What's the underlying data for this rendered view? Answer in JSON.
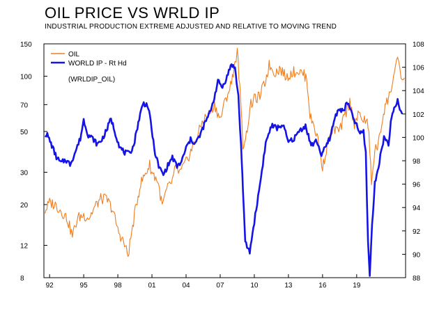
{
  "chart_data": {
    "type": "line",
    "title": "OIL PRICE VS WRLD IP",
    "subtitle": "INDUSTRIAL PRODUCTION EXTREME ADJUSTED AND RELATIVE TO MOVING TREND",
    "annotation": "(WRLDIP_OIL)",
    "colors": {
      "oil": "#f07d1e",
      "world_ip": "#1414e6",
      "frame": "#000000"
    },
    "xlim": [
      1991.5,
      2023.3
    ],
    "x_ticks": [
      1992,
      1995,
      1998,
      2001,
      2004,
      2007,
      2010,
      2013,
      2016,
      2019
    ],
    "x_tick_labels": [
      "92",
      "95",
      "98",
      "01",
      "04",
      "07",
      "10",
      "13",
      "16",
      "19"
    ],
    "y_left": {
      "scale": "log",
      "lim": [
        8,
        150
      ],
      "ticks": [
        150,
        100,
        70,
        50,
        30,
        20,
        12,
        8
      ],
      "tick_labels": [
        "150",
        "100",
        "70",
        "50",
        "30",
        "20",
        "12",
        "8"
      ]
    },
    "y_right": {
      "scale": "linear",
      "lim": [
        88,
        108
      ],
      "ticks": [
        108,
        106,
        104,
        102,
        100,
        98,
        96,
        94,
        92,
        90,
        88
      ],
      "tick_labels": [
        "108",
        "106",
        "104",
        "102",
        "100",
        "98",
        "96",
        "94",
        "92",
        "90",
        "88"
      ]
    },
    "legend": {
      "position": "top-left",
      "entries": [
        "OIL",
        "WORLD IP - Rt Hd"
      ]
    },
    "series": [
      {
        "name": "OIL",
        "axis": "left",
        "x": [
          1991.6,
          1992.0,
          1992.5,
          1993.0,
          1993.5,
          1994.0,
          1994.5,
          1995.0,
          1995.5,
          1996.0,
          1996.5,
          1997.0,
          1997.5,
          1998.0,
          1998.5,
          1998.9,
          1999.3,
          1999.7,
          2000.0,
          2000.5,
          2000.8,
          2001.0,
          2001.5,
          2001.9,
          2002.3,
          2002.8,
          2003.0,
          2003.5,
          2004.0,
          2004.5,
          2005.0,
          2005.5,
          2006.0,
          2006.5,
          2007.0,
          2007.5,
          2008.0,
          2008.3,
          2008.5,
          2008.8,
          2009.0,
          2009.3,
          2009.7,
          2010.0,
          2010.5,
          2011.0,
          2011.3,
          2011.8,
          2012.3,
          2012.8,
          2013.3,
          2013.8,
          2014.3,
          2014.6,
          2014.9,
          2015.2,
          2015.6,
          2016.0,
          2016.5,
          2017.0,
          2017.5,
          2018.0,
          2018.4,
          2018.8,
          2019.2,
          2019.6,
          2020.0,
          2020.3,
          2020.6,
          2020.9,
          2021.2,
          2021.5,
          2021.8,
          2022.1,
          2022.4,
          2022.6,
          2022.8,
          2023.0,
          2023.2
        ],
        "values": [
          18.5,
          20.5,
          20,
          18.5,
          17,
          13.5,
          17,
          17.5,
          17,
          19.5,
          21.5,
          21.5,
          19,
          14.5,
          12.5,
          10.5,
          15,
          21,
          26,
          30,
          33,
          30,
          27,
          19.5,
          24,
          27,
          31,
          30,
          34,
          40,
          47,
          58,
          62,
          70,
          58,
          75,
          92,
          120,
          135,
          70,
          42,
          48,
          70,
          75,
          78,
          95,
          115,
          105,
          110,
          98,
          105,
          107,
          103,
          98,
          60,
          55,
          45,
          31,
          45,
          52,
          50,
          62,
          72,
          55,
          62,
          58,
          55,
          25,
          40,
          42,
          55,
          70,
          75,
          90,
          110,
          120,
          108,
          95,
          98
        ]
      },
      {
        "name": "WORLD IP - Rt Hd",
        "axis": "right",
        "x": [
          1991.6,
          1991.8,
          1992.2,
          1992.6,
          1993.0,
          1993.4,
          1993.8,
          1994.2,
          1994.7,
          1995.0,
          1995.4,
          1995.8,
          1996.2,
          1996.6,
          1997.0,
          1997.4,
          1997.8,
          1998.2,
          1998.6,
          1999.0,
          1999.4,
          1999.8,
          2000.2,
          2000.6,
          2000.9,
          2001.2,
          2001.6,
          2002.0,
          2002.4,
          2002.8,
          2003.2,
          2003.6,
          2004.0,
          2004.4,
          2004.8,
          2005.2,
          2005.6,
          2006.0,
          2006.4,
          2006.8,
          2007.2,
          2007.6,
          2008.0,
          2008.3,
          2008.6,
          2008.9,
          2009.0,
          2009.2,
          2009.6,
          2010.0,
          2010.5,
          2011.0,
          2011.5,
          2012.0,
          2012.5,
          2013.0,
          2013.5,
          2014.0,
          2014.5,
          2015.0,
          2015.5,
          2015.9,
          2016.3,
          2016.7,
          2017.0,
          2017.4,
          2017.8,
          2018.2,
          2018.6,
          2019.0,
          2019.3,
          2019.6,
          2019.8,
          2020.0,
          2020.15,
          2020.35,
          2020.6,
          2021.0,
          2021.4,
          2021.8,
          2022.0,
          2022.3,
          2022.6,
          2022.8,
          2023.0
        ],
        "values": [
          100.3,
          100.2,
          99.3,
          98.3,
          97.8,
          98.1,
          97.7,
          98.6,
          99.9,
          101.5,
          100.2,
          99.9,
          99.4,
          99.8,
          100.6,
          101.6,
          100.3,
          99.1,
          98.7,
          98.6,
          99.3,
          101.3,
          102.9,
          102.8,
          101.3,
          99.0,
          97.5,
          96.8,
          97.6,
          98.3,
          97.5,
          97.9,
          99.1,
          99.8,
          99.5,
          100.1,
          101.1,
          101.9,
          103.1,
          104.8,
          104.3,
          105.2,
          106.3,
          105.9,
          103.5,
          98.0,
          95.5,
          91.0,
          90.2,
          92.8,
          96.0,
          99.5,
          101.0,
          100.8,
          101.1,
          99.6,
          99.9,
          100.6,
          101.0,
          99.3,
          99.7,
          98.5,
          99.2,
          100.1,
          101.4,
          102.5,
          102.2,
          103.0,
          101.9,
          101.0,
          100.3,
          100.5,
          98.7,
          91.0,
          88.2,
          92.5,
          96.0,
          98.0,
          100.0,
          99.5,
          101.2,
          102.5,
          103.1,
          102.4,
          102.0
        ]
      }
    ]
  }
}
